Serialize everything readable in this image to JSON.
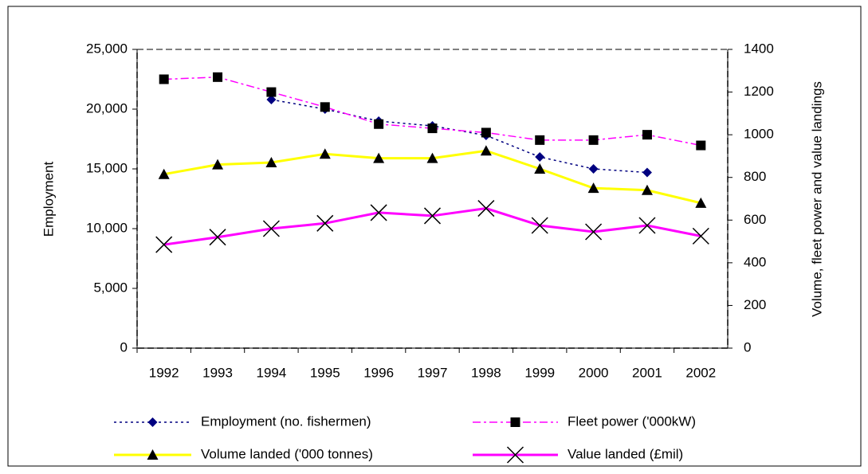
{
  "chart_data": {
    "type": "line",
    "categories": [
      "1992",
      "1993",
      "1994",
      "1995",
      "1996",
      "1997",
      "1998",
      "1999",
      "2000",
      "2001",
      "2002"
    ],
    "ylabel": "Employment",
    "y2label": "Volume, fleet power and value landings",
    "ylim": [
      0,
      25000
    ],
    "yticks": [
      0,
      {
        "value": 5000,
        "label": "5,000"
      },
      {
        "value": 10000,
        "label": "10,000"
      },
      {
        "value": 15000,
        "label": "15,000"
      },
      {
        "value": 20000,
        "label": "20,000"
      },
      {
        "value": 25000,
        "label": "25,000"
      }
    ],
    "y2lim": [
      0,
      1400
    ],
    "y2ticks": [
      0,
      200,
      400,
      600,
      800,
      1000,
      1200,
      1400
    ],
    "series": [
      {
        "name": "Employment (no. fishermen)",
        "color": "#000080",
        "dash": "dotted",
        "marker": "diamond",
        "marker_color": "#000080",
        "values": [
          null,
          null,
          20800,
          20000,
          19000,
          18600,
          17800,
          16000,
          15000,
          14700,
          null
        ]
      },
      {
        "name": "Fleet power ('000kW)",
        "color": "#ff00ff",
        "dash": "dashdot",
        "marker": "square",
        "marker_color": "#000000",
        "axis": "y2",
        "values": [
          1260,
          1270,
          1200,
          1130,
          1050,
          1030,
          1010,
          975,
          975,
          1000,
          950
        ]
      },
      {
        "name": "Volume landed ('000 tonnes)",
        "color": "#ffff00",
        "dash": "solid",
        "marker": "triangle",
        "marker_color": "#000000",
        "axis": "y2",
        "values": [
          815,
          860,
          870,
          910,
          890,
          890,
          925,
          840,
          750,
          740,
          680
        ]
      },
      {
        "name": "Value landed (£mil)",
        "color": "#ff00ff",
        "dash": "solid",
        "marker": "x",
        "marker_color": "#000000",
        "axis": "y2",
        "values": [
          485,
          520,
          560,
          585,
          635,
          620,
          655,
          575,
          545,
          575,
          525
        ]
      }
    ]
  }
}
